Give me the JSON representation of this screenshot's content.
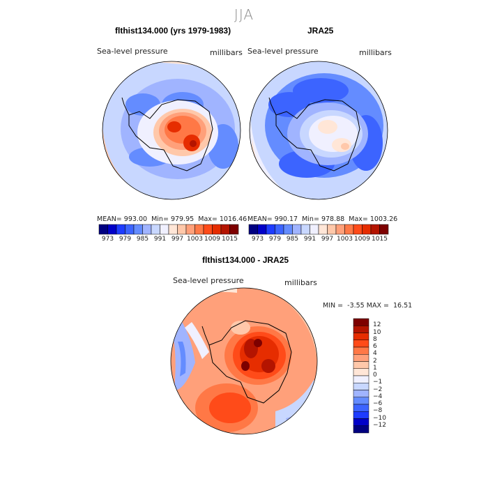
{
  "season": "JJA",
  "panel_left": {
    "title": "flthist134.000 (yrs 1979-1983)",
    "field": "Sea-level pressure",
    "units": "millibars",
    "mean_label": "MEAN=",
    "mean": "993.00",
    "min_label": "Min=",
    "min": "979.95",
    "max_label": "Max=",
    "max": "1016.46"
  },
  "panel_right": {
    "title": "JRA25",
    "field": "Sea-level pressure",
    "units": "millibars",
    "mean_label": "MEAN=",
    "mean": "990.17",
    "min_label": "Min=",
    "min": "978.88",
    "max_label": "Max=",
    "max": "1003.26"
  },
  "panel_diff": {
    "title": "flthist134.000 - JRA25",
    "field": "Sea-level pressure",
    "units": "millibars",
    "min_label": "MIN =",
    "min": "-3.55",
    "max_label": "MAX =",
    "max": "16.51"
  },
  "colorbar_top": {
    "ticks": [
      "973",
      "979",
      "985",
      "991",
      "997",
      "1003",
      "1009",
      "1015"
    ],
    "colors": [
      "#000080",
      "#0000c8",
      "#1e3cff",
      "#3c64ff",
      "#648cff",
      "#a0b4ff",
      "#c8d7ff",
      "#f0f0ff",
      "#ffe6d7",
      "#ffc8aa",
      "#ffa07a",
      "#ff7846",
      "#ff4b19",
      "#e62d00",
      "#b41400",
      "#7d0000"
    ]
  },
  "colorbar_diff": {
    "ticks": [
      "12",
      "10",
      "8",
      "6",
      "4",
      "2",
      "1",
      "0",
      "−1",
      "−2",
      "−4",
      "−6",
      "−8",
      "−10",
      "−12"
    ],
    "colors": [
      "#7d0000",
      "#b41400",
      "#e62d00",
      "#ff4b19",
      "#ff7846",
      "#ffa07a",
      "#ffc8aa",
      "#ffe6d7",
      "#f0f0ff",
      "#c8d7ff",
      "#a0b4ff",
      "#648cff",
      "#3c64ff",
      "#1e3cff",
      "#0000c8",
      "#000080"
    ]
  }
}
